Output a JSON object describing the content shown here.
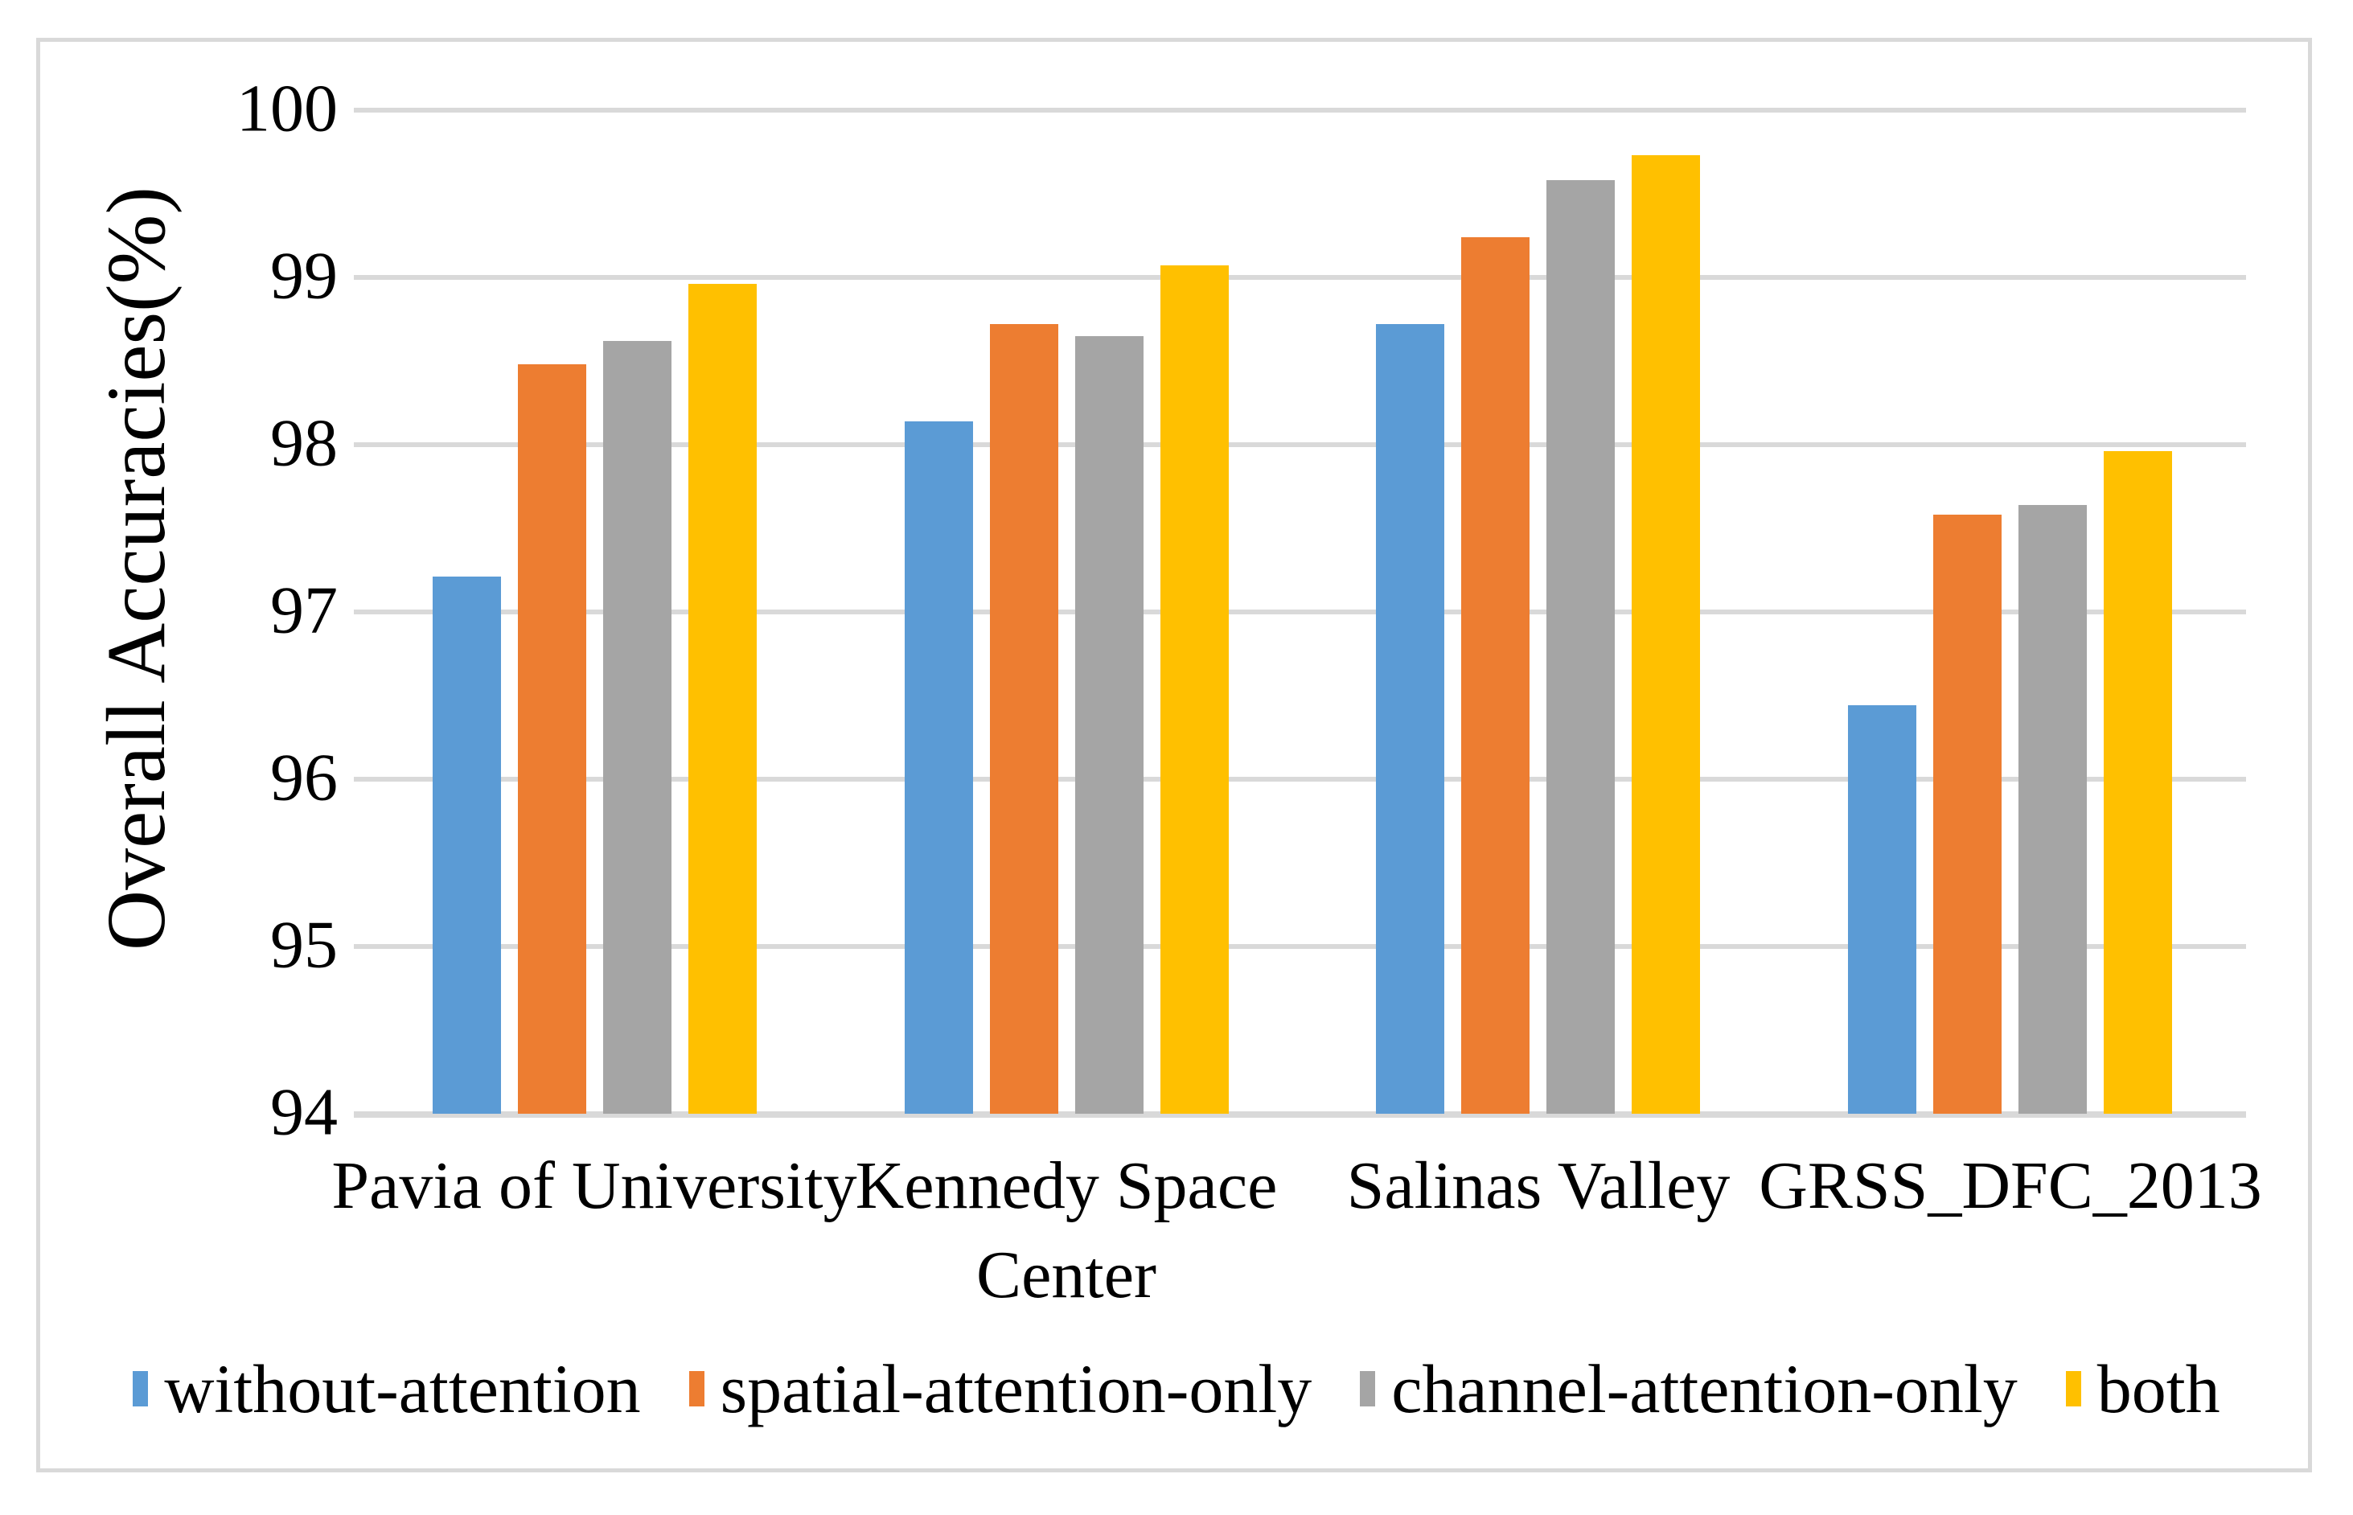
{
  "figure": {
    "background_color": "#FFFFFF",
    "border_color": "#D9D9D9",
    "gridline_color": "#D9D9D9",
    "text_color": "#000000"
  },
  "chart_data": {
    "type": "bar",
    "title": "",
    "xlabel": "",
    "ylabel": "Overall Accuracies(%)",
    "categories": [
      "Pavia of University",
      "Kennedy Space Center",
      "Salinas Valley",
      "GRSS_DFC_2013"
    ],
    "series": [
      {
        "name": "without-attention",
        "color": "#5B9BD5",
        "values": [
          97.21,
          98.14,
          98.72,
          96.44
        ]
      },
      {
        "name": "spatial-attention-only",
        "color": "#ED7D31",
        "values": [
          98.48,
          98.72,
          99.24,
          97.58
        ]
      },
      {
        "name": "channel-attention-only",
        "color": "#A5A5A5",
        "values": [
          98.62,
          98.65,
          99.58,
          97.64
        ]
      },
      {
        "name": "both",
        "color": "#FFC000",
        "values": [
          98.96,
          99.07,
          99.73,
          97.96
        ]
      }
    ],
    "ylim": [
      94,
      100
    ],
    "yticks": [
      94,
      95,
      96,
      97,
      98,
      99,
      100
    ],
    "grid": true,
    "legend_position": "bottom"
  }
}
